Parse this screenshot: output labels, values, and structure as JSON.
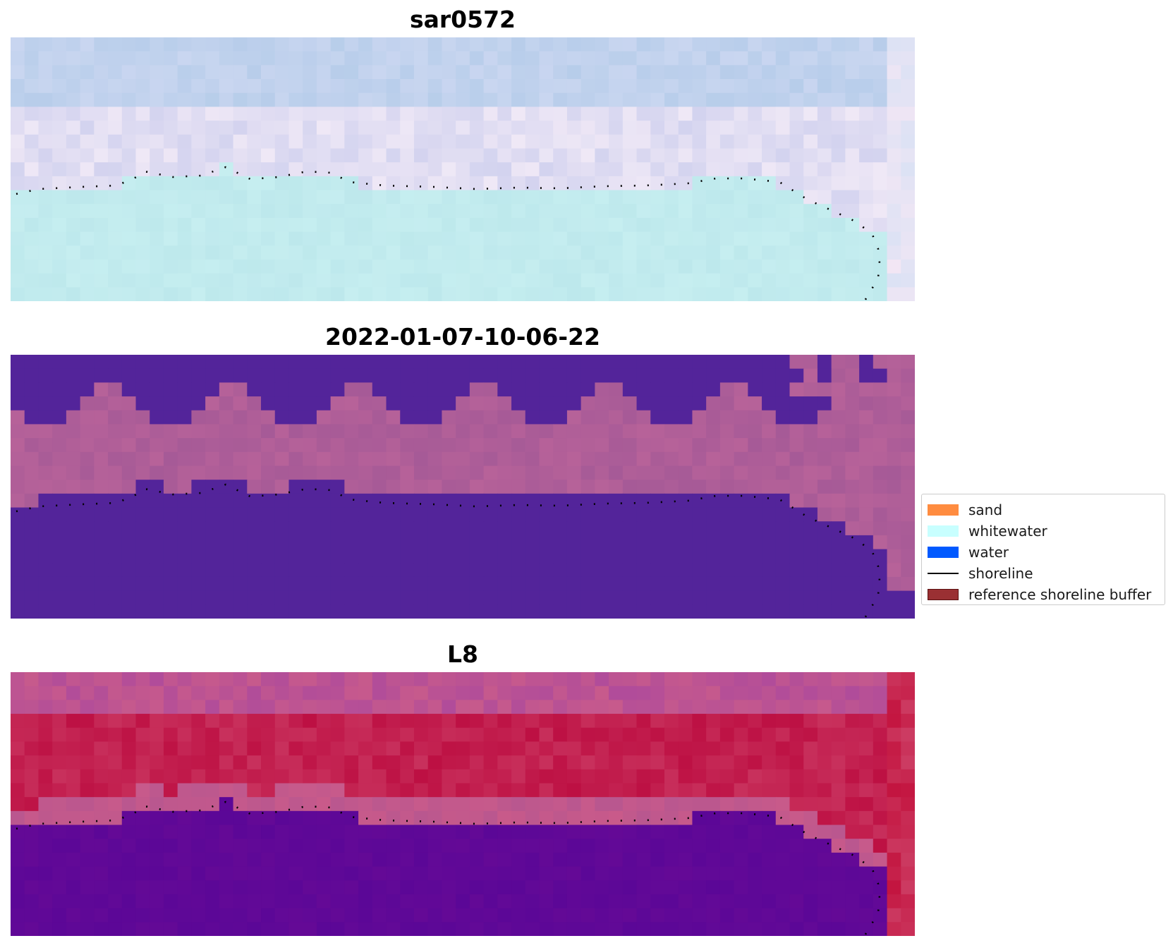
{
  "panels": [
    {
      "title": "sar0572",
      "theme": "sar"
    },
    {
      "title": "2022-01-07-10-06-22",
      "theme": "class"
    },
    {
      "title": "L8",
      "theme": "l8"
    }
  ],
  "legend": {
    "placement": "center-right",
    "items": [
      {
        "label": "sand",
        "kind": "patch",
        "color": "#ff8c40"
      },
      {
        "label": "whitewater",
        "kind": "patch",
        "color": "#c8ffff"
      },
      {
        "label": "water",
        "kind": "patch",
        "color": "#0059ff"
      },
      {
        "label": "shoreline",
        "kind": "line",
        "color": "#000000"
      },
      {
        "label": "reference shoreline buffer",
        "kind": "patch",
        "color": "#9a3033"
      }
    ]
  }
}
